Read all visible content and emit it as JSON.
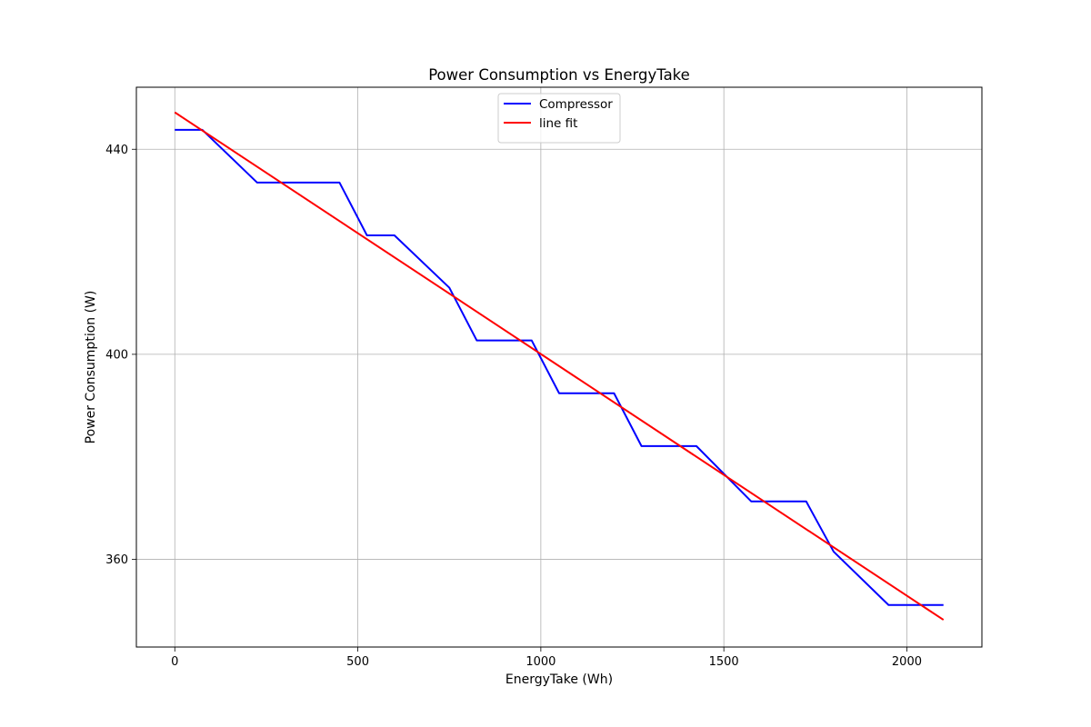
{
  "chart_data": {
    "type": "line",
    "title": "Power Consumption vs EnergyTake",
    "xlabel": "EnergyTake (Wh)",
    "ylabel": "Power Consumption (W)",
    "xlim": [
      -105,
      2205
    ],
    "ylim": [
      342.9,
      452.1
    ],
    "xticks": [
      0,
      500,
      1000,
      1500,
      2000
    ],
    "yticks": [
      360,
      400,
      440
    ],
    "grid": true,
    "legend_position": "upper center",
    "series": [
      {
        "name": "Compressor",
        "color": "#0000ff",
        "x": [
          0,
          75,
          225,
          450,
          525,
          600,
          750,
          825,
          975,
          1050,
          1200,
          1275,
          1425,
          1575,
          1725,
          1800,
          1950,
          2025,
          2100
        ],
        "y": [
          443.8,
          443.8,
          433.5,
          433.5,
          423.2,
          423.2,
          413.0,
          402.7,
          402.7,
          392.4,
          392.4,
          382.1,
          382.1,
          371.3,
          371.3,
          361.5,
          351.1,
          351.1,
          351.1
        ]
      },
      {
        "name": "line fit",
        "color": "#ff0000",
        "x": [
          0,
          2100
        ],
        "y": [
          447.2,
          348.2
        ]
      }
    ]
  }
}
